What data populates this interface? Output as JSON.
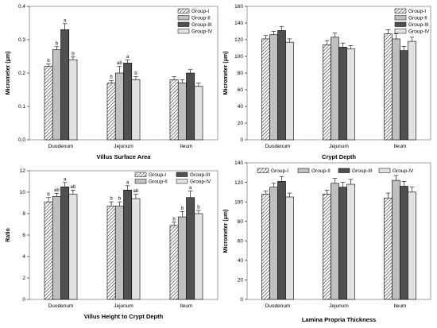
{
  "chart_data": [
    {
      "type": "bar",
      "title": "Villus Surface Area",
      "ylabel": "Micrometer (μm)",
      "categories": [
        "Duodenum",
        "Jejunum",
        "Ileum"
      ],
      "ylim": [
        0,
        0.4
      ],
      "yticks": [
        "0.0",
        "0.1",
        "0.2",
        "0.3",
        "0.4"
      ],
      "legend": "top-right-stacked",
      "series": [
        {
          "name": "Group-I",
          "values": [
            0.22,
            0.17,
            0.18
          ],
          "errors": [
            0.007,
            0.008,
            0.009
          ],
          "letters": [
            "b",
            "b",
            ""
          ]
        },
        {
          "name": "Group-II",
          "values": [
            0.27,
            0.2,
            0.17
          ],
          "errors": [
            0.009,
            0.02,
            0.01
          ],
          "letters": [
            "b",
            "ab",
            ""
          ]
        },
        {
          "name": "Group-III",
          "values": [
            0.33,
            0.23,
            0.2
          ],
          "errors": [
            0.018,
            0.009,
            0.01
          ],
          "letters": [
            "a",
            "a",
            ""
          ]
        },
        {
          "name": "Group-IV",
          "values": [
            0.24,
            0.18,
            0.16
          ],
          "errors": [
            0.008,
            0.009,
            0.01
          ],
          "letters": [
            "b",
            "b",
            ""
          ]
        }
      ]
    },
    {
      "type": "bar",
      "title": "Crypt Depth",
      "ylabel": "Micrometer (μm)",
      "categories": [
        "Duodenum",
        "Jejunum",
        "Ileum"
      ],
      "ylim": [
        0,
        160
      ],
      "yticks": [
        "0",
        "20",
        "40",
        "60",
        "80",
        "100",
        "120",
        "140",
        "160"
      ],
      "legend": "top-right-stacked",
      "series": [
        {
          "name": "Group-I",
          "values": [
            121,
            114,
            127
          ],
          "errors": [
            4,
            5,
            5
          ],
          "letters": [
            "",
            "",
            ""
          ]
        },
        {
          "name": "Group-II",
          "values": [
            126,
            123,
            121
          ],
          "errors": [
            4,
            5,
            6
          ],
          "letters": [
            "",
            "",
            ""
          ]
        },
        {
          "name": "Group-III",
          "values": [
            131,
            111,
            107
          ],
          "errors": [
            5,
            5,
            5
          ],
          "letters": [
            "",
            "",
            ""
          ]
        },
        {
          "name": "Group-IV",
          "values": [
            117,
            109,
            118
          ],
          "errors": [
            4,
            4,
            5
          ],
          "letters": [
            "",
            "",
            ""
          ]
        }
      ]
    },
    {
      "type": "bar",
      "title": "Villus Height to Crypt Depth",
      "ylabel": "Ratio",
      "categories": [
        "Duodenum",
        "Jejunum",
        "Ileum"
      ],
      "ylim": [
        0,
        12
      ],
      "yticks": [
        "0",
        "2",
        "4",
        "6",
        "8",
        "10",
        "12"
      ],
      "legend": "top-right-two-columns",
      "series": [
        {
          "name": "Group-I",
          "values": [
            9.1,
            8.7,
            6.9
          ],
          "errors": [
            0.4,
            0.4,
            0.3
          ],
          "letters": [
            "b",
            "b",
            "b"
          ]
        },
        {
          "name": "Group-II",
          "values": [
            9.6,
            8.7,
            7.7
          ],
          "errors": [
            0.3,
            0.4,
            0.5
          ],
          "letters": [
            "ab",
            "b",
            "b"
          ]
        },
        {
          "name": "Group-III",
          "values": [
            10.5,
            10.2,
            9.5
          ],
          "errors": [
            0.4,
            0.4,
            0.6
          ],
          "letters": [
            "a",
            "a",
            "a"
          ]
        },
        {
          "name": "Group-IV",
          "values": [
            9.8,
            9.4,
            8.0
          ],
          "errors": [
            0.4,
            0.4,
            0.3
          ],
          "letters": [
            "ab",
            "ab",
            "b"
          ]
        }
      ]
    },
    {
      "type": "bar",
      "title": "Lamina Propria Thickness",
      "ylabel": "Micrometer (μm)",
      "categories": [
        "Duodenum",
        "Jejunum",
        "Ileum"
      ],
      "ylim": [
        0,
        140
      ],
      "yticks": [
        "0",
        "20",
        "40",
        "60",
        "80",
        "100",
        "120",
        "140"
      ],
      "legend": "top-single-row",
      "series": [
        {
          "name": "Group-I",
          "values": [
            108,
            108,
            104
          ],
          "errors": [
            3,
            4,
            5
          ],
          "letters": [
            "",
            "",
            ""
          ]
        },
        {
          "name": "Group-II",
          "values": [
            115,
            119,
            122
          ],
          "errors": [
            4,
            5,
            5
          ],
          "letters": [
            "",
            "",
            ""
          ]
        },
        {
          "name": "Group-III",
          "values": [
            121,
            115,
            116
          ],
          "errors": [
            5,
            5,
            5
          ],
          "letters": [
            "",
            "",
            ""
          ]
        },
        {
          "name": "Group-IV",
          "values": [
            105,
            118,
            110
          ],
          "errors": [
            4,
            5,
            5
          ],
          "letters": [
            "",
            "",
            ""
          ]
        }
      ]
    }
  ],
  "styles": {
    "group_fills": [
      "pattern-hatch",
      "#c0c0c0",
      "#505050",
      "#e2e2e2"
    ],
    "stroke": "#000000",
    "frame": "#888888"
  }
}
